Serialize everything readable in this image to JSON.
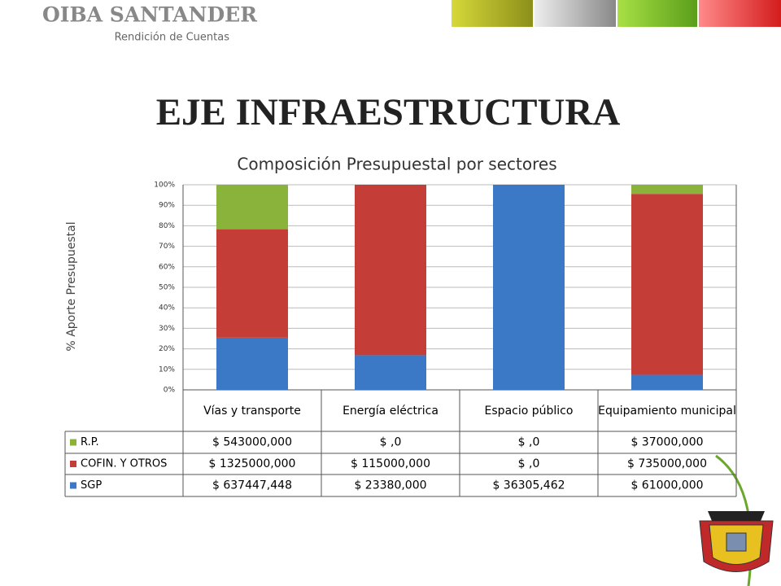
{
  "header": {
    "brand": "OIBA SANTANDER",
    "subtitle": "Rendición de Cuentas"
  },
  "slide_title": "EJE INFRAESTRUCTURA",
  "chart_data": {
    "type": "bar",
    "stacking": "percent",
    "title": "Composición Presupuestal por sectores",
    "y_label": "% Aporte Presupuestal",
    "categories": [
      "Vías y transporte",
      "Energía eléctrica",
      "Espacio público",
      "Equipamiento municipal"
    ],
    "series": [
      {
        "name": "SGP",
        "color": "#3b78c6",
        "values": [
          637447.448,
          23380,
          36305.462,
          61000
        ],
        "value_labels": [
          "$ 637447,448",
          "$ 23380,000",
          "$ 36305,462",
          "$ 61000,000"
        ]
      },
      {
        "name": "COFIN. Y OTROS",
        "color": "#c43d37",
        "values": [
          1325000,
          115000,
          0,
          735000
        ],
        "value_labels": [
          "$ 1325000,000",
          "$ 115000,000",
          "$ ,0",
          "$ 735000,000"
        ]
      },
      {
        "name": "R.P.",
        "color": "#8ab33c",
        "values": [
          543000,
          0,
          0,
          37000
        ],
        "value_labels": [
          "$ 543000,000",
          "$ ,0",
          "$ ,0",
          "$ 37000,000"
        ]
      }
    ],
    "ylim": [
      0,
      100
    ],
    "yticks": [
      {
        "value": 0,
        "label": "0%"
      },
      {
        "value": 10,
        "label": "10%"
      },
      {
        "value": 20,
        "label": "20%"
      },
      {
        "value": 30,
        "label": "30%"
      },
      {
        "value": 40,
        "label": "40%"
      },
      {
        "value": 50,
        "label": "50%"
      },
      {
        "value": 60,
        "label": "60%"
      },
      {
        "value": 70,
        "label": "70%"
      },
      {
        "value": 80,
        "label": "80%"
      },
      {
        "value": 90,
        "label": "90%"
      },
      {
        "value": 100,
        "label": "100%"
      }
    ],
    "grid": true
  }
}
